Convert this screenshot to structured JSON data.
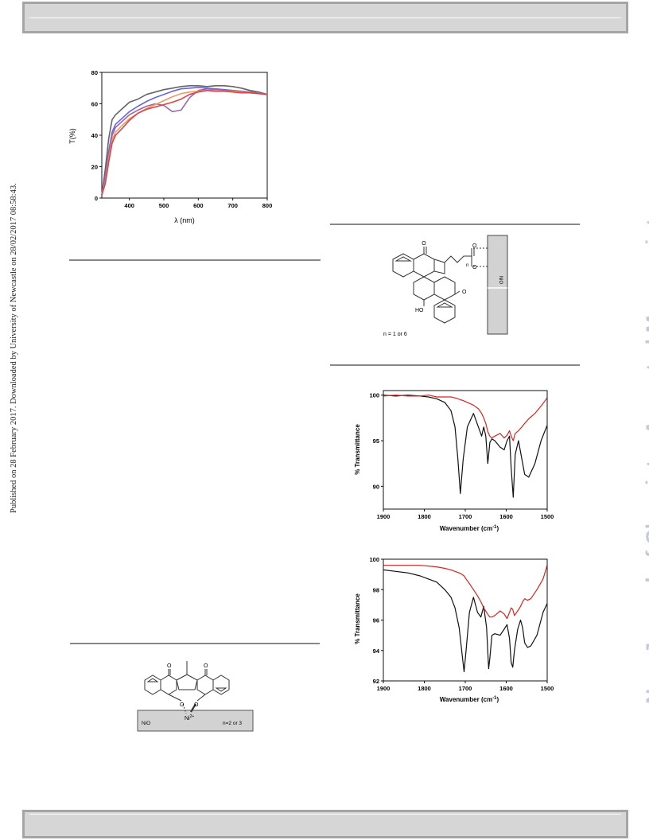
{
  "side_text": "Published on 28 February 2017. Downloaded by University of Newcastle on 28/02/2017 08:58:43.",
  "watermark": "New Journal of Chemistry Accepted Manuscript",
  "colors": {
    "band": "#d6d6d6",
    "band_border": "#a5a5a5",
    "rule": "#888888",
    "watermark": "#c4c9dc"
  },
  "chart_data": [
    {
      "type": "line",
      "title": "",
      "xlabel": "λ (nm)",
      "ylabel": "T(%)",
      "xlim": [
        320,
        800
      ],
      "ylim": [
        0,
        80
      ],
      "xticks": [
        400,
        500,
        600,
        700,
        800
      ],
      "yticks": [
        0,
        20,
        40,
        60,
        80
      ],
      "x": [
        320,
        330,
        340,
        350,
        360,
        380,
        400,
        425,
        450,
        475,
        500,
        525,
        550,
        575,
        600,
        625,
        650,
        675,
        700,
        725,
        750,
        775,
        800
      ],
      "series": [
        {
          "color": "#666666",
          "values": [
            2,
            18,
            38,
            50,
            53,
            57,
            61,
            63,
            66,
            67.5,
            69,
            70,
            71,
            71.5,
            71.5,
            71,
            71.5,
            71.5,
            71,
            70,
            68.5,
            67.5,
            66
          ]
        },
        {
          "color": "#6666dd",
          "values": [
            2,
            14,
            30,
            42,
            47,
            51,
            55,
            58.5,
            61.5,
            64,
            66,
            68,
            69.5,
            70,
            70.5,
            70,
            69.5,
            69,
            68.5,
            68,
            67.5,
            67,
            66
          ]
        },
        {
          "color": "#9966aa",
          "values": [
            2,
            12,
            28,
            40,
            45,
            49,
            53,
            56,
            58.5,
            60,
            59,
            55,
            56,
            64,
            68.5,
            69.5,
            69,
            68.5,
            68,
            68,
            67.5,
            67,
            66
          ]
        },
        {
          "color": "#ee9966",
          "values": [
            2,
            10,
            25,
            37,
            42,
            46.5,
            50.5,
            54,
            57,
            59.5,
            62,
            64.5,
            66.5,
            67.5,
            68,
            68.5,
            68.5,
            68,
            68,
            67.5,
            67,
            66.5,
            66
          ]
        },
        {
          "color": "#dd4444",
          "values": [
            2,
            9,
            23,
            35,
            40,
            44.5,
            49.5,
            54,
            56.5,
            58,
            59.5,
            61,
            63,
            66,
            67.5,
            68.5,
            68,
            68,
            67.5,
            67,
            67,
            66.5,
            66
          ]
        }
      ]
    },
    {
      "type": "line",
      "title": "",
      "xlabel": "Wavenumber (cm",
      "xlabel_sup": "-1",
      "xlabel_end": ")",
      "ylabel": "% Transmittance",
      "xlim": [
        1900,
        1500
      ],
      "ylim": [
        87.5,
        100.5
      ],
      "xticks": [
        1900,
        1800,
        1700,
        1600,
        1500
      ],
      "yticks": [
        90,
        95,
        100
      ],
      "x": [
        1900,
        1870,
        1840,
        1810,
        1790,
        1770,
        1750,
        1735,
        1725,
        1718,
        1712,
        1705,
        1695,
        1680,
        1668,
        1660,
        1655,
        1650,
        1645,
        1640,
        1635,
        1628,
        1615,
        1605,
        1598,
        1592,
        1588,
        1583,
        1578,
        1570,
        1562,
        1555,
        1545,
        1530,
        1515,
        1500
      ],
      "series": [
        {
          "color": "#111111",
          "values": [
            100,
            99.9,
            100,
            99.9,
            99.8,
            99.6,
            99.2,
            98.3,
            96.5,
            93,
            89.2,
            93,
            96.5,
            98,
            96.5,
            95.5,
            96.5,
            95.5,
            92.5,
            94.8,
            95.2,
            95,
            94.3,
            94,
            95,
            95.5,
            92,
            88.8,
            93.5,
            95,
            93,
            91.3,
            91,
            92.5,
            95,
            96.7
          ]
        },
        {
          "color": "#dd2222",
          "values": [
            99.9,
            100,
            99.9,
            99.9,
            100,
            99.8,
            99.8,
            99.8,
            99.7,
            99.6,
            99.5,
            99.4,
            99.2,
            98.9,
            98.5,
            98,
            97.5,
            96.9,
            96,
            95.5,
            95.3,
            95.5,
            95.8,
            95.3,
            95.6,
            96.1,
            95.5,
            95,
            95.8,
            96.1,
            96.5,
            96.9,
            97.4,
            98,
            98.8,
            99.7
          ]
        }
      ]
    },
    {
      "type": "line",
      "title": "",
      "xlabel": "Wavenumber (cm",
      "xlabel_sup": "-1",
      "xlabel_end": ")",
      "ylabel": "% Transmittance",
      "xlim": [
        1900,
        1500
      ],
      "ylim": [
        92,
        100
      ],
      "xticks": [
        1900,
        1800,
        1700,
        1600,
        1500
      ],
      "yticks": [
        92,
        94,
        96,
        98,
        100
      ],
      "x": [
        1900,
        1870,
        1840,
        1810,
        1790,
        1770,
        1750,
        1735,
        1725,
        1715,
        1708,
        1703,
        1698,
        1690,
        1680,
        1670,
        1662,
        1655,
        1648,
        1643,
        1640,
        1635,
        1628,
        1615,
        1605,
        1598,
        1592,
        1588,
        1584,
        1580,
        1572,
        1565,
        1560,
        1555,
        1548,
        1540,
        1525,
        1510,
        1500
      ],
      "series": [
        {
          "color": "#111111",
          "values": [
            99.3,
            99.2,
            99.1,
            98.9,
            98.7,
            98.5,
            98,
            97.5,
            96.8,
            95.5,
            93.8,
            92.6,
            94,
            96.5,
            97.5,
            96.5,
            96.2,
            96.9,
            95.5,
            92.8,
            93.5,
            95,
            95.1,
            95,
            95.4,
            95.7,
            94.8,
            93.2,
            92.9,
            94,
            95.4,
            96,
            95.5,
            94.5,
            94.2,
            94.3,
            95,
            96.5,
            97.1
          ]
        },
        {
          "color": "#dd2222",
          "values": [
            99.6,
            99.6,
            99.6,
            99.6,
            99.55,
            99.5,
            99.4,
            99.3,
            99.2,
            99.1,
            99,
            98.9,
            98.7,
            98.4,
            98,
            97.6,
            97.2,
            96.8,
            96.5,
            96.3,
            96.2,
            96.2,
            96.3,
            96.6,
            96.4,
            96.1,
            96.5,
            96.8,
            96.7,
            96.3,
            96.6,
            96.9,
            97.2,
            97.4,
            97.3,
            97.4,
            98,
            98.7,
            99.6
          ]
        }
      ]
    }
  ],
  "scheme_right": {
    "label_n": "n",
    "label_ho": "HO",
    "label_nio": "NiO",
    "caption_n": "n = 1 or 6"
  },
  "scheme_left": {
    "label_nio": "NiO",
    "label_ni": "Ni",
    "label_ni_sup": "2+",
    "label_n": "n=2 or 3"
  }
}
